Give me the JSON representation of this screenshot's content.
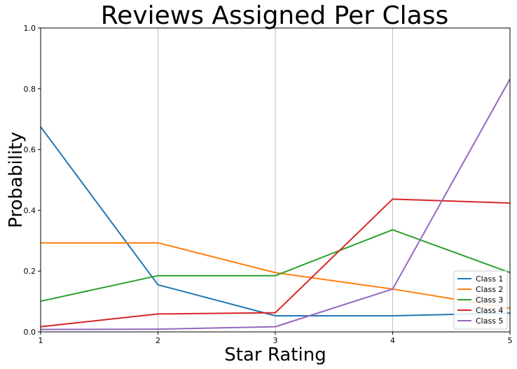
{
  "chart_data": {
    "type": "line",
    "title": "Reviews Assigned Per Class",
    "xlabel": "Star Rating",
    "ylabel": "Probability",
    "x": [
      1,
      2,
      3,
      4,
      5
    ],
    "xlim": [
      1,
      5
    ],
    "ylim": [
      0,
      1
    ],
    "xticks": [
      "1",
      "2",
      "3",
      "4",
      "5"
    ],
    "yticks": [
      "0.0",
      "0.2",
      "0.4",
      "0.6",
      "0.8",
      "1.0"
    ],
    "grid": "vertical",
    "legend_position": "lower-right",
    "series": [
      {
        "name": "Class 1",
        "color": "#1f77b4",
        "values": [
          0.675,
          0.155,
          0.053,
          0.053,
          0.062
        ]
      },
      {
        "name": "Class 2",
        "color": "#ff7f0e",
        "values": [
          0.293,
          0.293,
          0.195,
          0.141,
          0.078
        ]
      },
      {
        "name": "Class 3",
        "color": "#2ca02c",
        "values": [
          0.101,
          0.185,
          0.185,
          0.336,
          0.195
        ]
      },
      {
        "name": "Class 4",
        "color": "#d62728",
        "values": [
          0.017,
          0.059,
          0.063,
          0.437,
          0.424
        ]
      },
      {
        "name": "Class 5",
        "color": "#9467bd",
        "values": [
          0.008,
          0.009,
          0.017,
          0.141,
          0.832
        ]
      }
    ]
  }
}
